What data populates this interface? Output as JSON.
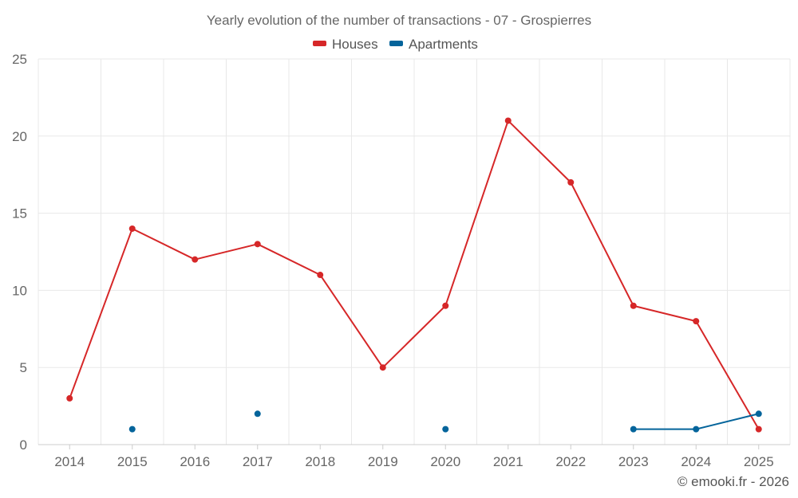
{
  "chart_data": {
    "type": "line",
    "title": "Yearly evolution of the number of transactions - 07 - Grospierres",
    "categories": [
      "2014",
      "2015",
      "2016",
      "2017",
      "2018",
      "2019",
      "2020",
      "2021",
      "2022",
      "2023",
      "2024",
      "2025"
    ],
    "ylim": [
      0,
      25
    ],
    "yticks": [
      0,
      5,
      10,
      15,
      20,
      25
    ],
    "xlabel": "",
    "ylabel": "",
    "grid": true,
    "legend": "top-center",
    "series": [
      {
        "name": "Houses",
        "color": "#d62728",
        "values": [
          3,
          14,
          12,
          13,
          11,
          5,
          9,
          21,
          17,
          9,
          8,
          1
        ]
      },
      {
        "name": "Apartments",
        "color": "#04649b",
        "values": [
          null,
          1,
          null,
          2,
          null,
          null,
          1,
          null,
          null,
          1,
          1,
          2
        ]
      }
    ]
  },
  "copyright": "© emooki.fr - 2026"
}
